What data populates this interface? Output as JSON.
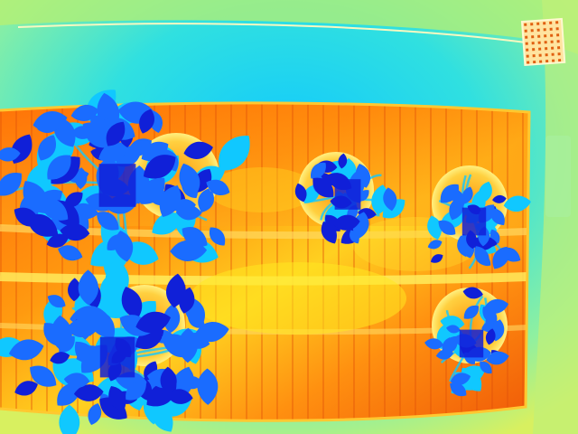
{
  "image": {
    "kind": "thermal-camera-photo",
    "palette": [
      "#1020d8",
      "#1a6cff",
      "#10c8ff",
      "#6ff0b8",
      "#c8f060",
      "#ffe820",
      "#ffa010",
      "#ff6a08",
      "#f04a08"
    ],
    "plants": [
      {
        "name": "large-plant-top-left",
        "size": "large"
      },
      {
        "name": "large-plant-bottom-left",
        "size": "large"
      },
      {
        "name": "small-plant-center",
        "size": "small"
      },
      {
        "name": "small-plant-right-upper",
        "size": "small"
      },
      {
        "name": "small-plant-right-lower",
        "size": "small"
      }
    ],
    "objects": [
      "heated-bench-slats",
      "plant-pots",
      "floor-drain-grate",
      "wall-edge"
    ]
  }
}
